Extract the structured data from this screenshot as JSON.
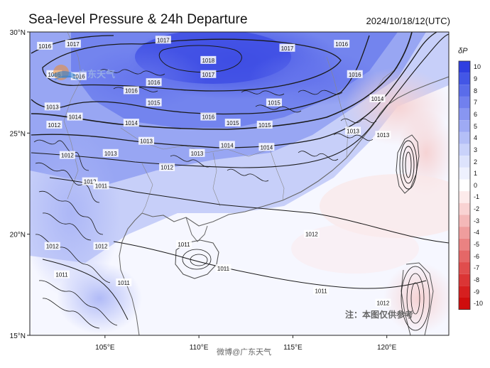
{
  "title": "Sea-level Pressure & 24h Departure",
  "timestamp": "2024/10/18/12(UTC)",
  "map": {
    "lat_labels": [
      "30°N",
      "25°N",
      "20°N",
      "15°N"
    ],
    "lon_labels": [
      "105°E",
      "110°E",
      "115°E",
      "120°E"
    ],
    "isobar_labels": [
      {
        "v": "1016",
        "lon": 101.8,
        "lat": 29.3
      },
      {
        "v": "1017",
        "lon": 103.3,
        "lat": 29.4
      },
      {
        "v": "1017",
        "lon": 108.1,
        "lat": 29.6
      },
      {
        "v": "1018",
        "lon": 110.5,
        "lat": 28.6
      },
      {
        "v": "1017",
        "lon": 110.5,
        "lat": 27.9
      },
      {
        "v": "1017",
        "lon": 114.7,
        "lat": 29.2
      },
      {
        "v": "1016",
        "lon": 117.6,
        "lat": 29.4
      },
      {
        "v": "1016",
        "lon": 102.3,
        "lat": 27.9
      },
      {
        "v": "1016",
        "lon": 103.6,
        "lat": 27.8
      },
      {
        "v": "1016",
        "lon": 107.6,
        "lat": 27.5
      },
      {
        "v": "1016",
        "lon": 106.4,
        "lat": 27.1
      },
      {
        "v": "1016",
        "lon": 118.3,
        "lat": 27.9
      },
      {
        "v": "1015",
        "lon": 107.6,
        "lat": 26.5
      },
      {
        "v": "1015",
        "lon": 114.0,
        "lat": 26.5
      },
      {
        "v": "1013",
        "lon": 102.2,
        "lat": 26.3
      },
      {
        "v": "1014",
        "lon": 103.4,
        "lat": 25.8
      },
      {
        "v": "1014",
        "lon": 106.4,
        "lat": 25.5
      },
      {
        "v": "1016",
        "lon": 110.5,
        "lat": 25.8
      },
      {
        "v": "1015",
        "lon": 111.8,
        "lat": 25.5
      },
      {
        "v": "1015",
        "lon": 113.5,
        "lat": 25.4
      },
      {
        "v": "1014",
        "lon": 119.5,
        "lat": 26.7
      },
      {
        "v": "1013",
        "lon": 118.2,
        "lat": 25.1
      },
      {
        "v": "1012",
        "lon": 102.3,
        "lat": 25.4
      },
      {
        "v": "1013",
        "lon": 107.2,
        "lat": 24.6
      },
      {
        "v": "1013",
        "lon": 109.9,
        "lat": 24.0
      },
      {
        "v": "1014",
        "lon": 111.5,
        "lat": 24.4
      },
      {
        "v": "1014",
        "lon": 113.6,
        "lat": 24.3
      },
      {
        "v": "1013",
        "lon": 119.8,
        "lat": 24.9
      },
      {
        "v": "1013",
        "lon": 105.3,
        "lat": 24.0
      },
      {
        "v": "1012",
        "lon": 103.0,
        "lat": 23.9
      },
      {
        "v": "1012",
        "lon": 108.3,
        "lat": 23.3
      },
      {
        "v": "1012",
        "lon": 104.2,
        "lat": 22.6
      },
      {
        "v": "1011",
        "lon": 104.8,
        "lat": 22.4
      },
      {
        "v": "1012",
        "lon": 102.2,
        "lat": 19.4
      },
      {
        "v": "1012",
        "lon": 104.8,
        "lat": 19.4
      },
      {
        "v": "1011",
        "lon": 109.2,
        "lat": 19.5
      },
      {
        "v": "1011",
        "lon": 111.3,
        "lat": 18.3
      },
      {
        "v": "1011",
        "lon": 102.7,
        "lat": 18.0
      },
      {
        "v": "1011",
        "lon": 106.0,
        "lat": 17.6
      },
      {
        "v": "1012",
        "lon": 116.0,
        "lat": 20.0
      },
      {
        "v": "1011",
        "lon": 116.5,
        "lat": 17.2
      },
      {
        "v": "1012",
        "lon": 119.8,
        "lat": 16.6
      }
    ]
  },
  "colorbar": {
    "title": "δP",
    "labels": [
      "10",
      "9",
      "8",
      "7",
      "6",
      "5",
      "4",
      "3",
      "2",
      "1",
      "0",
      "-1",
      "-2",
      "-3",
      "-4",
      "-5",
      "-6",
      "-7",
      "-8",
      "-9",
      "-10"
    ],
    "colors": [
      "#2f3fe0",
      "#4356e6",
      "#5a6cea",
      "#7180ee",
      "#8896f1",
      "#9eaaf4",
      "#b4bff7",
      "#c9d2fa",
      "#dde3fc",
      "#eef1fe",
      "#ffffff",
      "#fdebeb",
      "#f9d3d3",
      "#f4b8b8",
      "#ef9d9d",
      "#ea8282",
      "#e56767",
      "#e04d4d",
      "#db3535",
      "#d61f1f",
      "#cf0d0d"
    ]
  },
  "watermarks": {
    "note": "注：本图仅供参考",
    "weibo": "微博@广东天气",
    "logo": "广东天气"
  }
}
